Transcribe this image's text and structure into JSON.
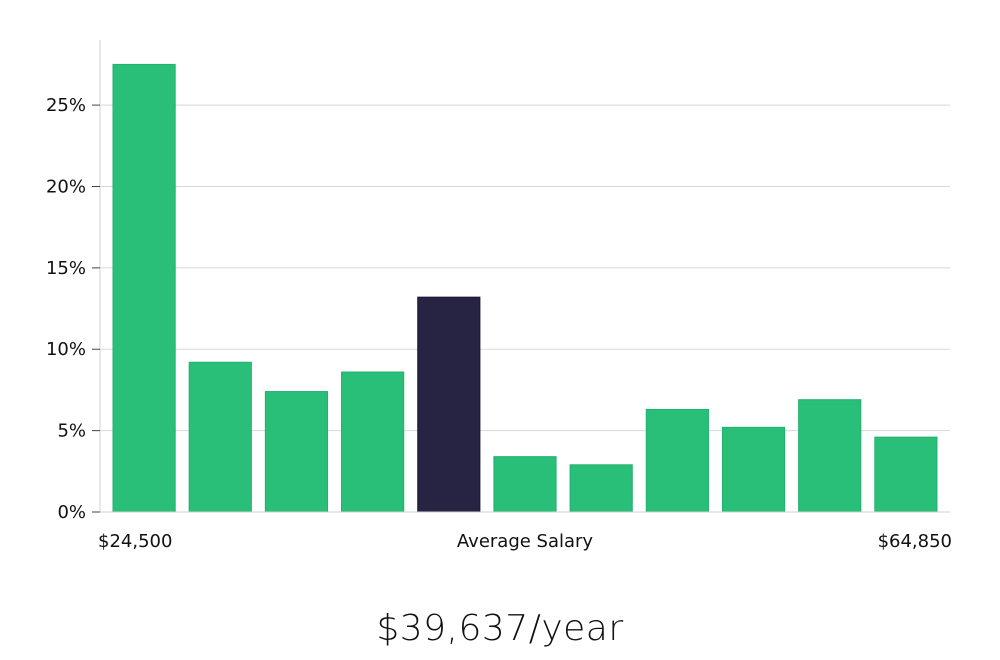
{
  "chart_data": {
    "type": "bar",
    "values": [
      27.5,
      9.2,
      7.4,
      8.6,
      13.2,
      3.4,
      2.9,
      6.3,
      5.2,
      6.9,
      4.6
    ],
    "highlight_index": 4,
    "ylim": [
      0,
      29
    ],
    "y_ticks": [
      0,
      5,
      10,
      15,
      20,
      25
    ],
    "y_tick_labels": [
      "0%",
      "5%",
      "10%",
      "15%",
      "20%",
      "25%"
    ],
    "x_labels": {
      "left": "$24,500",
      "center": "Average Salary",
      "right": "$64,850"
    },
    "grid": true,
    "colors": {
      "bar": "#29bf78",
      "highlight": "#272343",
      "grid": "#d8d8d8"
    }
  },
  "salary_text": "$39,637/year"
}
